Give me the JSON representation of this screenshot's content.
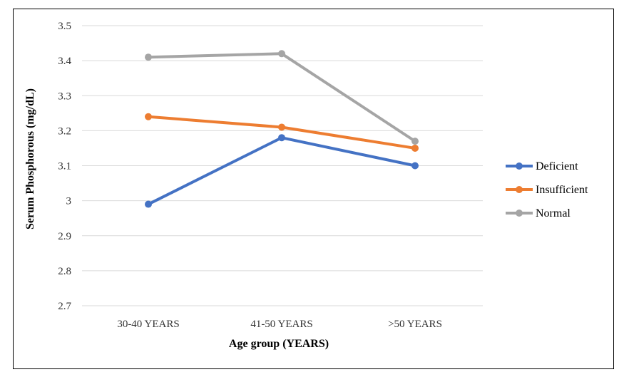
{
  "chart_data": {
    "type": "line",
    "title": "",
    "xlabel": "Age group (YEARS)",
    "ylabel": "Serum Phosphorous (mg/dL)",
    "categories": [
      "30-40 YEARS",
      "41-50 YEARS",
      ">50 YEARS"
    ],
    "ylim": [
      2.7,
      3.5
    ],
    "yticks": [
      "2.7",
      "2.8",
      "2.9",
      "3",
      "3.1",
      "3.2",
      "3.3",
      "3.4",
      "3.5"
    ],
    "grid": true,
    "legend_position": "right",
    "series": [
      {
        "name": "Deficient",
        "color": "#4472C4",
        "values": [
          2.99,
          3.18,
          3.1
        ]
      },
      {
        "name": "Insufficient",
        "color": "#ED7D31",
        "values": [
          3.24,
          3.21,
          3.15
        ]
      },
      {
        "name": "Normal",
        "color": "#A5A5A5",
        "values": [
          3.41,
          3.42,
          3.17
        ]
      }
    ]
  }
}
